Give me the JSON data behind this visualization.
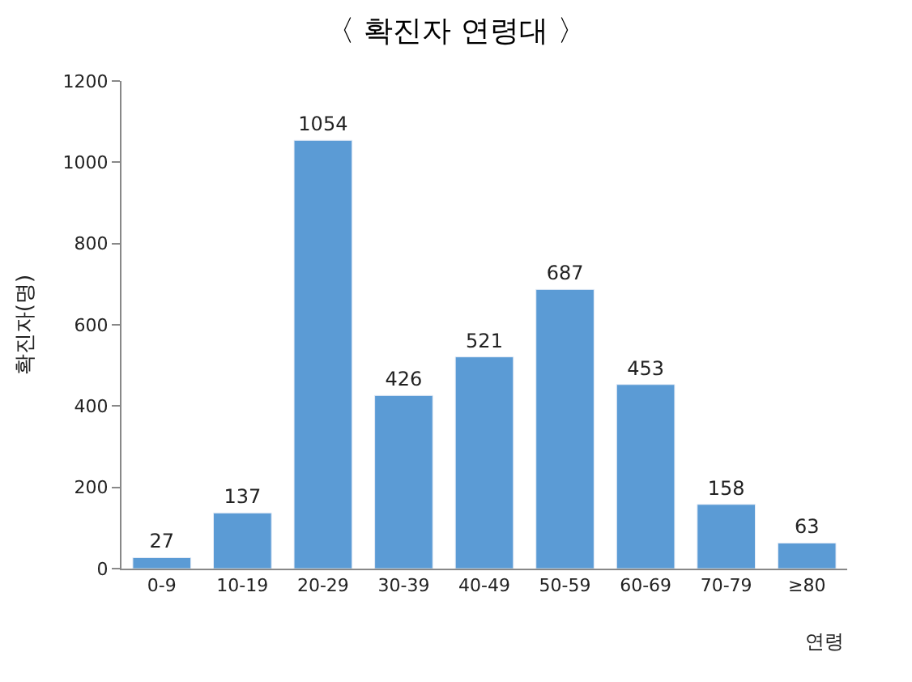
{
  "chart_data": {
    "type": "bar",
    "title": "〈 확진자 연령대 〉",
    "xlabel": "연령",
    "ylabel": "확진자(명)",
    "categories": [
      "0-9",
      "10-19",
      "20-29",
      "30-39",
      "40-49",
      "50-59",
      "60-69",
      "70-79",
      "≥80"
    ],
    "values": [
      27,
      137,
      1054,
      426,
      521,
      687,
      453,
      158,
      63
    ],
    "color": "#5b9bd5",
    "ylim": [
      0,
      1200
    ],
    "yticks": [
      0,
      200,
      400,
      600,
      800,
      1000,
      1200
    ],
    "data_labels": true
  }
}
